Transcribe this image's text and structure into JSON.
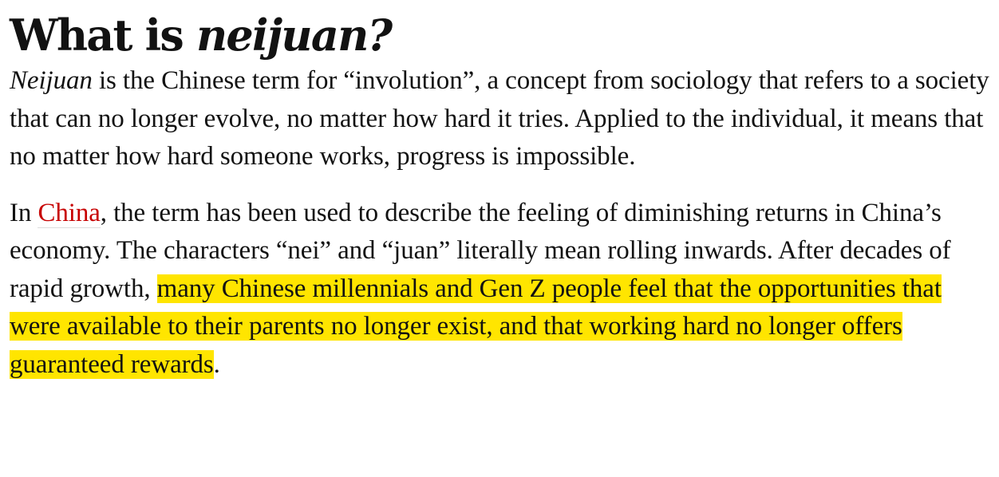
{
  "heading": {
    "prefix": "What is ",
    "emphasis": "neijuan?"
  },
  "paragraph1": {
    "term": "Neijuan",
    "text": " is the Chinese term for “involution”, a concept from sociology that refers to a society that can no longer evolve, no matter how hard it tries. Applied to the individual, it means that no matter how hard someone works, progress is impossible."
  },
  "paragraph2": {
    "lead": "In ",
    "link_text": "China",
    "text": ", the term has been used to describe the feeling of diminishing returns in China’s economy. The characters “nei” and “juan” literally mean rolling inwards. After decades of rapid growth, ",
    "highlight": "many Chinese millennials and Gen Z people feel that the opportunities that were available to their parents no longer exist, and that working hard no longer offers guaranteed rewards",
    "end": "."
  },
  "colors": {
    "text": "#121212",
    "link": "#c70000",
    "highlight": "#ffe500"
  }
}
